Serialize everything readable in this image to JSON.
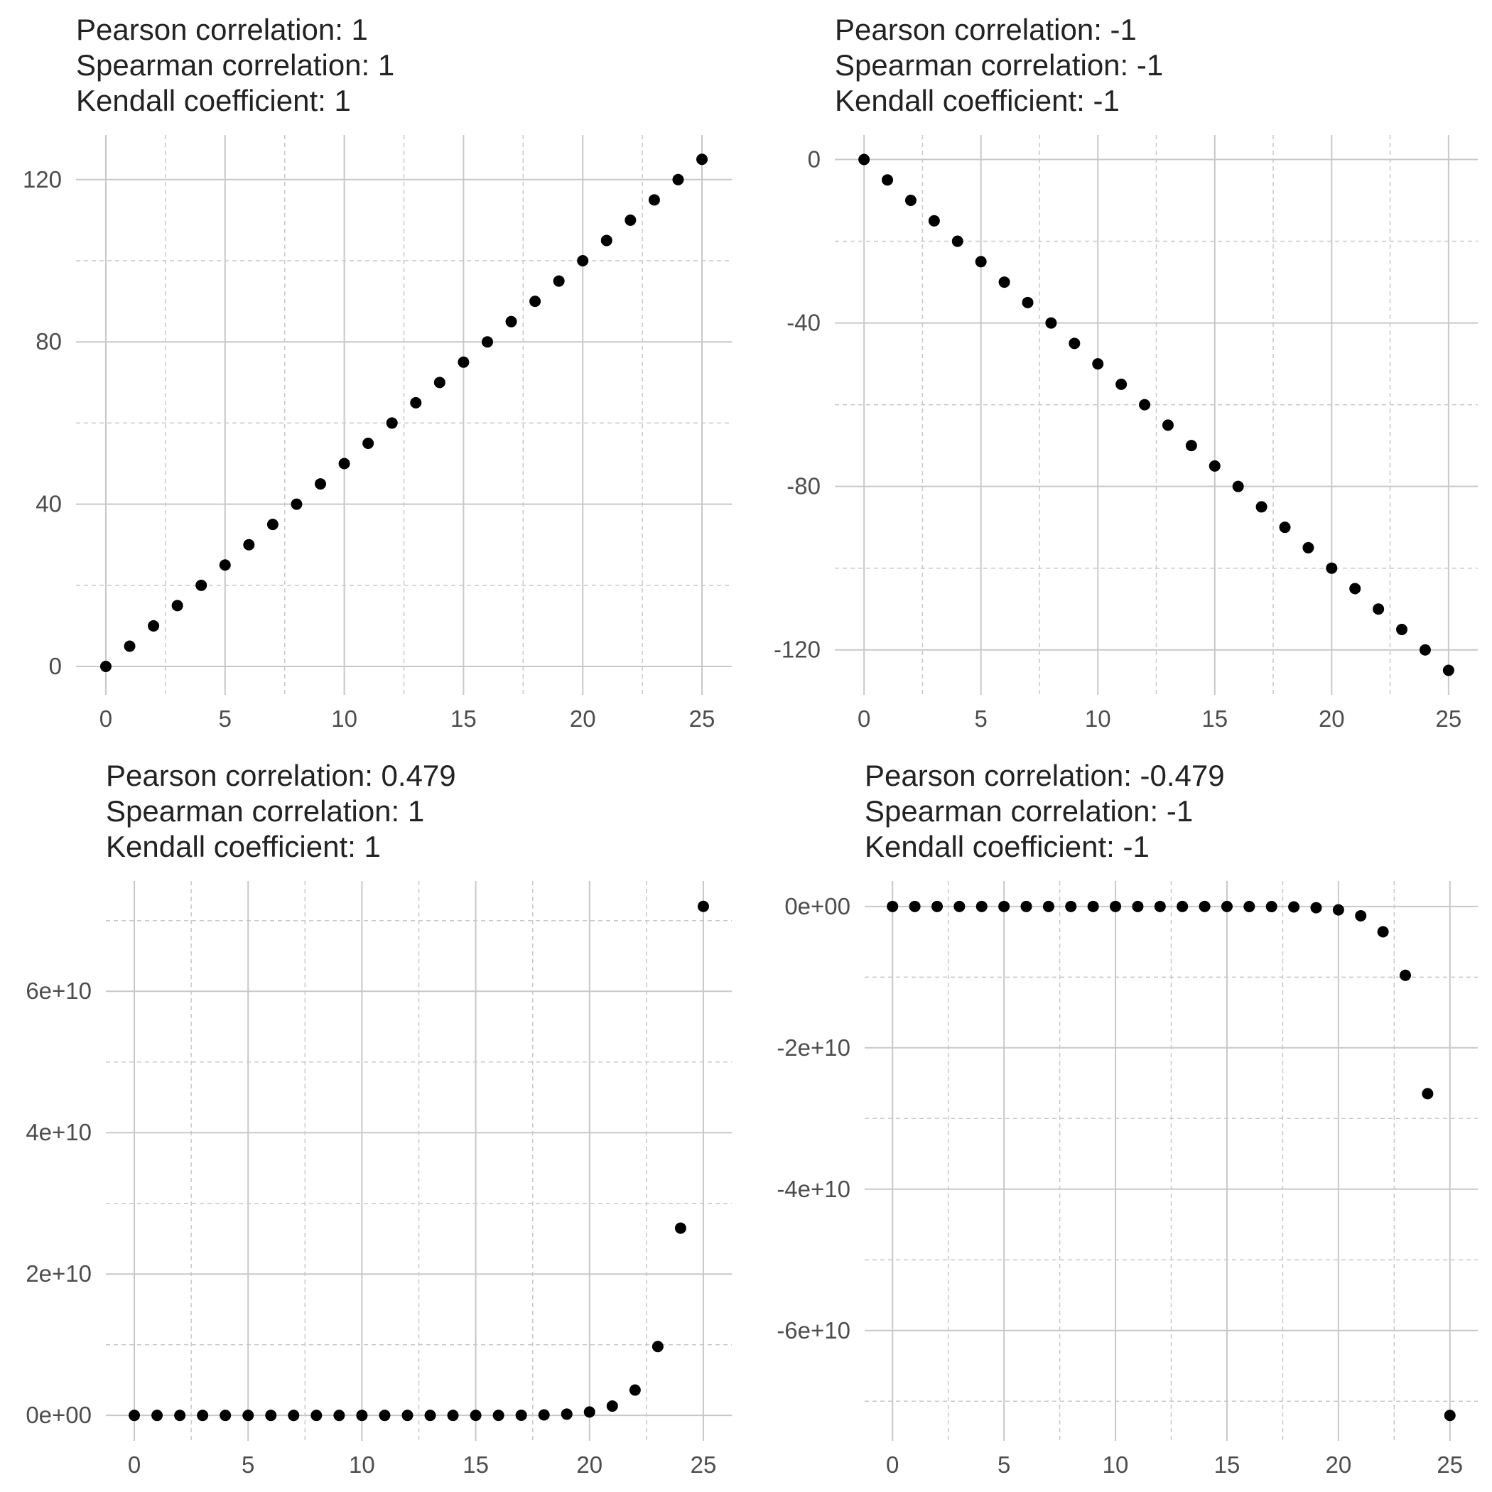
{
  "chart_data": [
    {
      "type": "scatter",
      "title_lines": [
        "Pearson correlation: 1",
        "Spearman correlation: 1",
        "Kendall coefficient: 1"
      ],
      "x": [
        0,
        1,
        2,
        3,
        4,
        5,
        6,
        7,
        8,
        9,
        10,
        11,
        12,
        13,
        14,
        15,
        16,
        17,
        18,
        19,
        20,
        21,
        22,
        23,
        24,
        25
      ],
      "y": [
        0,
        5,
        10,
        15,
        20,
        25,
        30,
        35,
        40,
        45,
        50,
        55,
        60,
        65,
        70,
        75,
        80,
        85,
        90,
        95,
        100,
        105,
        110,
        115,
        120,
        125
      ],
      "xlim": [
        -1.25,
        26.25
      ],
      "ylim": [
        -7,
        131
      ],
      "x_ticks": [
        0,
        5,
        10,
        15,
        20,
        25
      ],
      "x_tick_labels": [
        "0",
        "5",
        "10",
        "15",
        "20",
        "25"
      ],
      "x_minor_ticks": [
        2.5,
        7.5,
        12.5,
        17.5,
        22.5
      ],
      "y_ticks": [
        0,
        40,
        80,
        120
      ],
      "y_tick_labels": [
        "0",
        "40",
        "80",
        "120"
      ],
      "y_minor_ticks": [
        20,
        60,
        100
      ],
      "xlabel": "",
      "ylabel": "",
      "grid": true,
      "point_color": "#000000"
    },
    {
      "type": "scatter",
      "title_lines": [
        "Pearson correlation: -1",
        "Spearman correlation: -1",
        "Kendall coefficient: -1"
      ],
      "x": [
        0,
        1,
        2,
        3,
        4,
        5,
        6,
        7,
        8,
        9,
        10,
        11,
        12,
        13,
        14,
        15,
        16,
        17,
        18,
        19,
        20,
        21,
        22,
        23,
        24,
        25
      ],
      "y": [
        0,
        -5,
        -10,
        -15,
        -20,
        -25,
        -30,
        -35,
        -40,
        -45,
        -50,
        -55,
        -60,
        -65,
        -70,
        -75,
        -80,
        -85,
        -90,
        -95,
        -100,
        -105,
        -110,
        -115,
        -120,
        -125
      ],
      "xlim": [
        -1.25,
        26.25
      ],
      "ylim": [
        -131,
        6
      ],
      "x_ticks": [
        0,
        5,
        10,
        15,
        20,
        25
      ],
      "x_tick_labels": [
        "0",
        "5",
        "10",
        "15",
        "20",
        "25"
      ],
      "x_minor_ticks": [
        2.5,
        7.5,
        12.5,
        17.5,
        22.5
      ],
      "y_ticks": [
        0,
        -40,
        -80,
        -120
      ],
      "y_tick_labels": [
        "0",
        "-40",
        "-80",
        "-120"
      ],
      "y_minor_ticks": [
        -20,
        -60,
        -100
      ],
      "xlabel": "",
      "ylabel": "",
      "grid": true,
      "point_color": "#000000"
    },
    {
      "type": "scatter",
      "title_lines": [
        "Pearson correlation: 0.479",
        "Spearman correlation: 1",
        "Kendall coefficient: 1"
      ],
      "x": [
        0,
        1,
        2,
        3,
        4,
        5,
        6,
        7,
        8,
        9,
        10,
        11,
        12,
        13,
        14,
        15,
        16,
        17,
        18,
        19,
        20,
        21,
        22,
        23,
        24,
        25
      ],
      "y": [
        1,
        2.718,
        7.389,
        20.09,
        54.6,
        148.4,
        403.4,
        1097,
        2981,
        8103,
        22026,
        59874,
        162755,
        442413,
        1202604,
        3269017,
        8886111,
        24154953,
        65659969,
        178482301,
        485165195,
        1318815734,
        3584912846,
        9744803446,
        26489122130,
        72004899337
      ],
      "xlim": [
        -1.25,
        26.25
      ],
      "ylim": [
        -3600000000.0,
        75600000000.0
      ],
      "x_ticks": [
        0,
        5,
        10,
        15,
        20,
        25
      ],
      "x_tick_labels": [
        "0",
        "5",
        "10",
        "15",
        "20",
        "25"
      ],
      "x_minor_ticks": [
        2.5,
        7.5,
        12.5,
        17.5,
        22.5
      ],
      "y_ticks": [
        0,
        20000000000.0,
        40000000000.0,
        60000000000.0
      ],
      "y_tick_labels": [
        "0e+00",
        "2e+10",
        "4e+10",
        "6e+10"
      ],
      "y_minor_ticks": [
        10000000000.0,
        30000000000.0,
        50000000000.0,
        70000000000.0
      ],
      "xlabel": "",
      "ylabel": "",
      "grid": true,
      "point_color": "#000000"
    },
    {
      "type": "scatter",
      "title_lines": [
        "Pearson correlation: -0.479",
        "Spearman correlation: -1",
        "Kendall coefficient: -1"
      ],
      "x": [
        0,
        1,
        2,
        3,
        4,
        5,
        6,
        7,
        8,
        9,
        10,
        11,
        12,
        13,
        14,
        15,
        16,
        17,
        18,
        19,
        20,
        21,
        22,
        23,
        24,
        25
      ],
      "y": [
        -1,
        -2.718,
        -7.389,
        -20.09,
        -54.6,
        -148.4,
        -403.4,
        -1097,
        -2981,
        -8103,
        -22026,
        -59874,
        -162755,
        -442413,
        -1202604,
        -3269017,
        -8886111,
        -24154953,
        -65659969,
        -178482301,
        -485165195,
        -1318815734,
        -3584912846,
        -9744803446,
        -26489122130,
        -72004899337
      ],
      "xlim": [
        -1.25,
        26.25
      ],
      "ylim": [
        -75600000000.0,
        3600000000.0
      ],
      "x_ticks": [
        0,
        5,
        10,
        15,
        20,
        25
      ],
      "x_tick_labels": [
        "0",
        "5",
        "10",
        "15",
        "20",
        "25"
      ],
      "x_minor_ticks": [
        2.5,
        7.5,
        12.5,
        17.5,
        22.5
      ],
      "y_ticks": [
        0,
        -20000000000.0,
        -40000000000.0,
        -60000000000.0
      ],
      "y_tick_labels": [
        "0e+00",
        "-2e+10",
        "-4e+10",
        "-6e+10"
      ],
      "y_minor_ticks": [
        -10000000000.0,
        -30000000000.0,
        -50000000000.0,
        -70000000000.0
      ],
      "xlabel": "",
      "ylabel": "",
      "grid": true,
      "point_color": "#000000"
    }
  ],
  "colors": {
    "major_grid": "#c8c8c8",
    "minor_grid": "#c8c8c8",
    "tick_text": "#4d4d4d",
    "title_text": "#222222",
    "background": "#ffffff"
  }
}
